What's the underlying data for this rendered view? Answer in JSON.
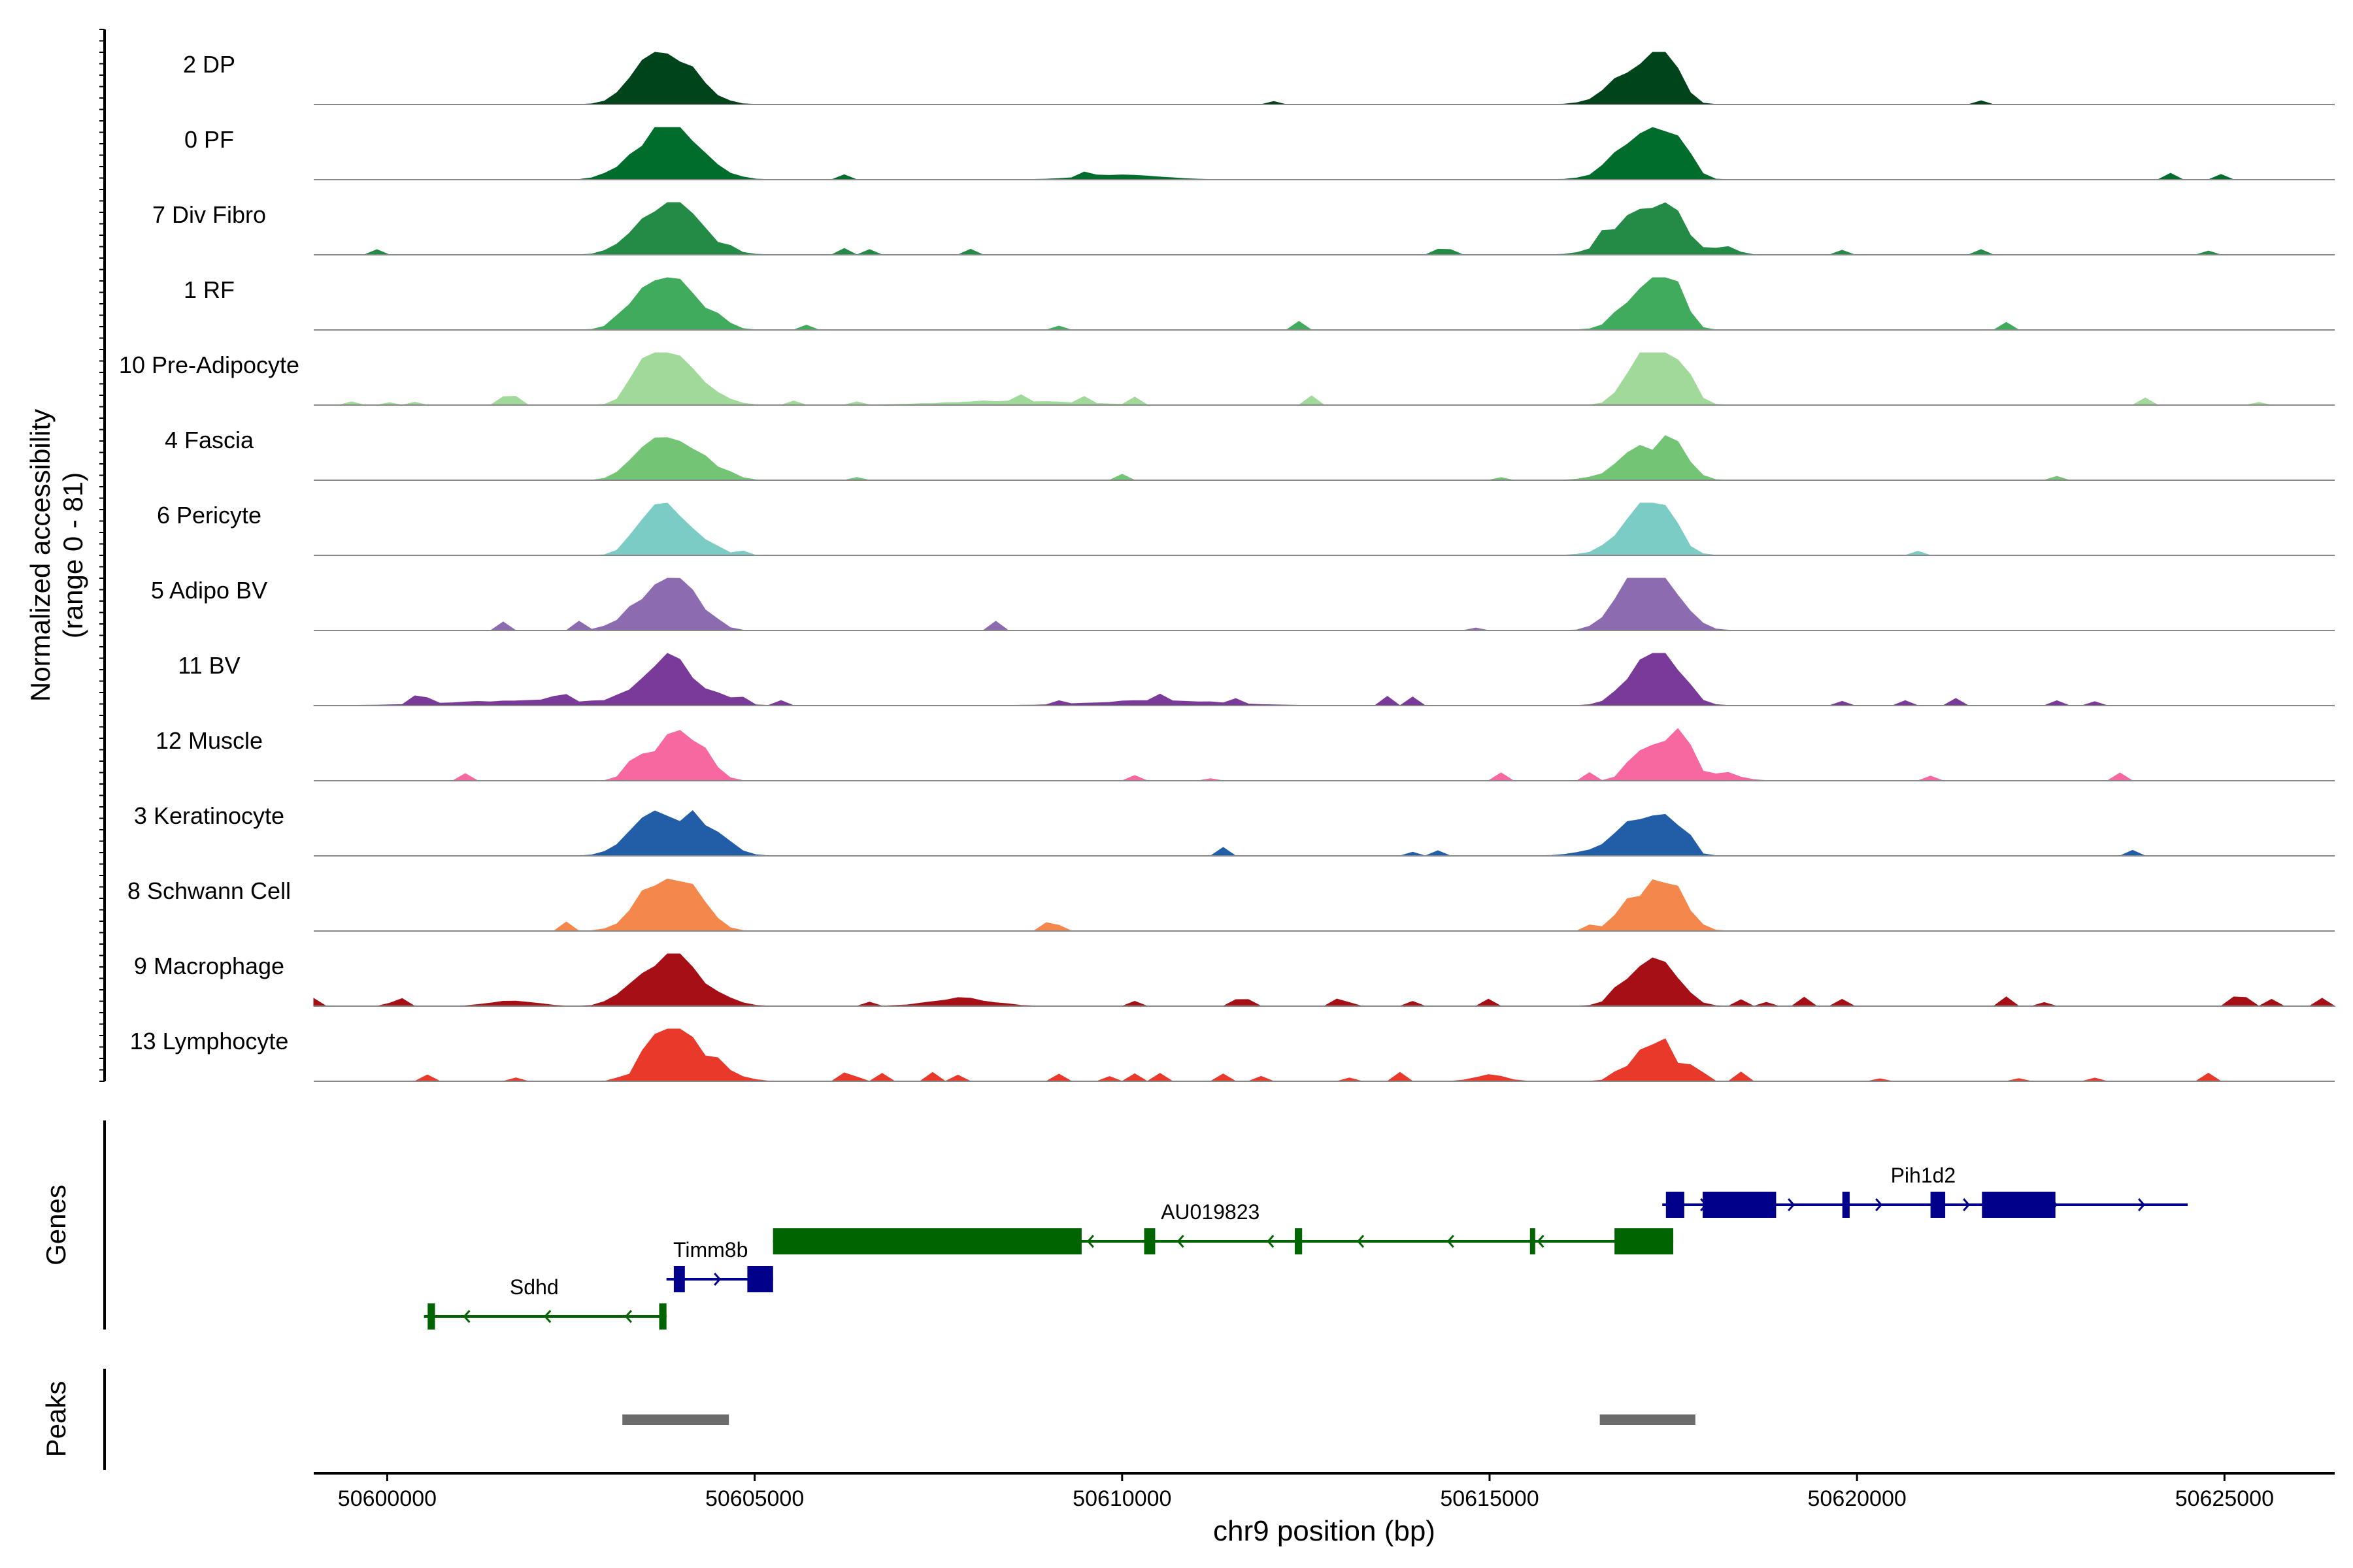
{
  "chart_data": {
    "type": "genome-coverage-tracks",
    "y_axis_label_line1": "Normalized accessibility",
    "y_axis_label_line2": "(range 0 - 81)",
    "x_axis_label": "chr9 position (bp)",
    "x_range": [
      50599000,
      50626500
    ],
    "x_ticks": [
      50600000,
      50605000,
      50610000,
      50615000,
      50620000,
      50625000
    ],
    "x_tick_labels": [
      "50600000",
      "50605000",
      "50610000",
      "50615000",
      "50620000",
      "50625000"
    ],
    "genes_panel_label": "Genes",
    "peaks_panel_label": "Peaks",
    "tracks": [
      {
        "name": "2 DP",
        "color": "#00441B",
        "noise": 0.02,
        "peaks": [
          [
            50603750,
            300,
            1.0
          ],
          [
            50603450,
            250,
            0.25
          ],
          [
            50604250,
            250,
            0.25
          ],
          [
            50617050,
            300,
            0.55
          ],
          [
            50617300,
            150,
            0.6
          ],
          [
            50617500,
            150,
            0.55
          ],
          [
            50616800,
            300,
            0.2
          ]
        ]
      },
      {
        "name": "0 PF",
        "color": "#006D2C",
        "noise": 0.04,
        "peaks": [
          [
            50603800,
            300,
            0.95
          ],
          [
            50603300,
            250,
            0.25
          ],
          [
            50604250,
            300,
            0.35
          ],
          [
            50617050,
            250,
            0.75
          ],
          [
            50617500,
            200,
            0.85
          ],
          [
            50616750,
            300,
            0.2
          ],
          [
            50610000,
            500,
            0.1
          ]
        ]
      },
      {
        "name": "7 Div Fibro",
        "color": "#238B45",
        "noise": 0.05,
        "peaks": [
          [
            50603800,
            300,
            0.85
          ],
          [
            50603400,
            250,
            0.3
          ],
          [
            50604250,
            300,
            0.3
          ],
          [
            50617050,
            250,
            0.75
          ],
          [
            50617500,
            200,
            0.8
          ],
          [
            50616750,
            300,
            0.25
          ],
          [
            50618200,
            150,
            0.15
          ]
        ]
      },
      {
        "name": "1 RF",
        "color": "#41AB5D",
        "noise": 0.02,
        "peaks": [
          [
            50603800,
            300,
            1.0
          ],
          [
            50603300,
            200,
            0.25
          ],
          [
            50604400,
            200,
            0.25
          ],
          [
            50617000,
            250,
            0.6
          ],
          [
            50617300,
            150,
            0.7
          ],
          [
            50617550,
            150,
            0.75
          ]
        ]
      },
      {
        "name": "10 Pre-Adipocyte",
        "color": "#A1D99B",
        "noise": 0.07,
        "peaks": [
          [
            50603800,
            250,
            1.0
          ],
          [
            50603500,
            200,
            0.5
          ],
          [
            50604200,
            300,
            0.35
          ],
          [
            50617300,
            250,
            0.8
          ],
          [
            50617000,
            200,
            0.5
          ],
          [
            50617650,
            150,
            0.4
          ],
          [
            50608500,
            800,
            0.08
          ]
        ]
      },
      {
        "name": "4 Fascia",
        "color": "#74C476",
        "noise": 0.03,
        "peaks": [
          [
            50603800,
            300,
            0.75
          ],
          [
            50603400,
            200,
            0.25
          ],
          [
            50604350,
            250,
            0.3
          ],
          [
            50617000,
            200,
            0.55
          ],
          [
            50617500,
            200,
            0.75
          ],
          [
            50616800,
            300,
            0.15
          ]
        ]
      },
      {
        "name": "6 Pericyte",
        "color": "#7BCCC4",
        "noise": 0.03,
        "peaks": [
          [
            50603800,
            250,
            0.8
          ],
          [
            50603500,
            200,
            0.4
          ],
          [
            50604200,
            250,
            0.3
          ],
          [
            50617050,
            250,
            0.65
          ],
          [
            50617400,
            200,
            0.75
          ],
          [
            50616800,
            300,
            0.15
          ]
        ]
      },
      {
        "name": "5 Adipo BV",
        "color": "#8C6BB1",
        "noise": 0.04,
        "peaks": [
          [
            50603900,
            250,
            0.9
          ],
          [
            50603500,
            300,
            0.45
          ],
          [
            50604300,
            200,
            0.25
          ],
          [
            50617300,
            300,
            1.0
          ],
          [
            50616950,
            250,
            0.5
          ],
          [
            50616700,
            200,
            0.15
          ]
        ]
      },
      {
        "name": "11 BV",
        "color": "#7A3A9A",
        "noise": 0.12,
        "peaks": [
          [
            50603850,
            200,
            1.0
          ],
          [
            50603450,
            250,
            0.3
          ],
          [
            50604300,
            300,
            0.3
          ],
          [
            50617400,
            250,
            0.9
          ],
          [
            50617000,
            250,
            0.45
          ],
          [
            50602000,
            1000,
            0.1
          ],
          [
            50610500,
            800,
            0.1
          ]
        ]
      },
      {
        "name": "12 Muscle",
        "color": "#F768A1",
        "noise": 0.06,
        "peaks": [
          [
            50603900,
            250,
            0.9
          ],
          [
            50603400,
            150,
            0.35
          ],
          [
            50604250,
            200,
            0.4
          ],
          [
            50617600,
            150,
            0.95
          ],
          [
            50617000,
            150,
            0.55
          ],
          [
            50617300,
            150,
            0.6
          ],
          [
            50618200,
            200,
            0.15
          ]
        ]
      },
      {
        "name": "3 Keratinocyte",
        "color": "#225EA8",
        "noise": 0.03,
        "peaks": [
          [
            50603800,
            300,
            0.75
          ],
          [
            50603400,
            250,
            0.3
          ],
          [
            50604400,
            250,
            0.45
          ],
          [
            50617000,
            250,
            0.45
          ],
          [
            50617450,
            200,
            0.55
          ],
          [
            50616800,
            400,
            0.2
          ]
        ]
      },
      {
        "name": "8 Schwann Cell",
        "color": "#F4874B",
        "noise": 0.04,
        "peaks": [
          [
            50603900,
            250,
            1.0
          ],
          [
            50603500,
            250,
            0.45
          ],
          [
            50604300,
            200,
            0.3
          ],
          [
            50617200,
            300,
            0.55
          ],
          [
            50617500,
            200,
            0.6
          ],
          [
            50616900,
            200,
            0.3
          ]
        ]
      },
      {
        "name": "9 Macrophage",
        "color": "#A50F15",
        "noise": 0.1,
        "peaks": [
          [
            50603900,
            250,
            0.9
          ],
          [
            50603400,
            250,
            0.4
          ],
          [
            50604300,
            300,
            0.3
          ],
          [
            50617350,
            250,
            0.75
          ],
          [
            50617000,
            250,
            0.4
          ],
          [
            50607800,
            400,
            0.15
          ],
          [
            50601700,
            300,
            0.1
          ]
        ]
      },
      {
        "name": "13 Lymphocyte",
        "color": "#E8392A",
        "noise": 0.12,
        "peaks": [
          [
            50603850,
            200,
            1.0
          ],
          [
            50604300,
            300,
            0.5
          ],
          [
            50603500,
            150,
            0.3
          ],
          [
            50617350,
            200,
            0.65
          ],
          [
            50617000,
            200,
            0.35
          ],
          [
            50617800,
            100,
            0.25
          ],
          [
            50615000,
            200,
            0.12
          ]
        ]
      }
    ],
    "genes": [
      {
        "name": "Sdhd",
        "strand": "-",
        "color": "#006400",
        "row": 3,
        "start": 50600500,
        "end": 50603800,
        "exons": [
          [
            50600550,
            50600650
          ],
          [
            50603700,
            50603800
          ]
        ],
        "label_pos": 50602000
      },
      {
        "name": "Timm8b",
        "strand": "+",
        "color": "#00008B",
        "row": 2,
        "start": 50603800,
        "end": 50605250,
        "exons": [
          [
            50603900,
            50604050
          ],
          [
            50604900,
            50605250
          ]
        ],
        "label_pos": 50604400
      },
      {
        "name": "AU019823",
        "strand": "-",
        "color": "#006400",
        "row": 1,
        "start": 50605250,
        "end": 50617500,
        "exons": [
          [
            50605250,
            50609450
          ],
          [
            50610300,
            50610450
          ],
          [
            50612350,
            50612450
          ],
          [
            50615550,
            50615600
          ],
          [
            50616700,
            50617500
          ]
        ],
        "label_pos": 50611200
      },
      {
        "name": "Pih1d2",
        "strand": "+",
        "color": "#00008B",
        "row": 0,
        "start": 50617350,
        "end": 50624500,
        "exons": [
          [
            50617400,
            50617650
          ],
          [
            50617900,
            50618900
          ],
          [
            50619800,
            50619900
          ],
          [
            50621000,
            50621200
          ],
          [
            50621700,
            50622700
          ]
        ],
        "label_pos": 50620900
      }
    ],
    "peak_regions": [
      [
        50603200,
        50604650
      ],
      [
        50616500,
        50617800
      ]
    ]
  }
}
